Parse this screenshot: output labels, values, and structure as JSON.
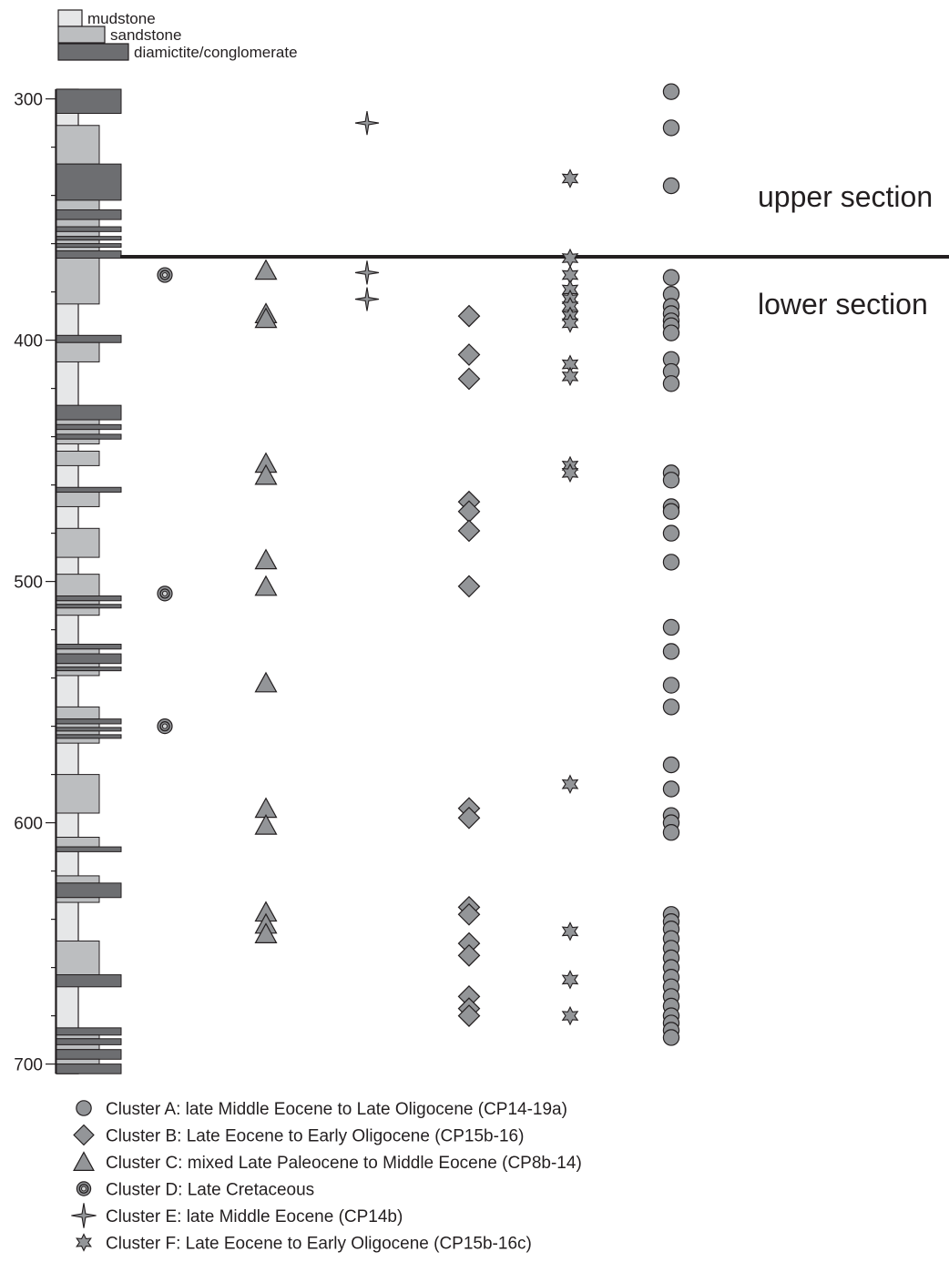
{
  "chart_data": {
    "type": "scatter",
    "y_axis": {
      "ticks": [
        300,
        400,
        500,
        600,
        700
      ],
      "ylim": [
        300,
        700
      ],
      "direction": "depth increases downward"
    },
    "lithology_legend": [
      {
        "key": "mudstone",
        "label": "mudstone",
        "color": "#e6e7e8"
      },
      {
        "key": "sandstone",
        "label": "sandstone",
        "color": "#bcbec0"
      },
      {
        "key": "diamictite",
        "label": "diamictite/conglomerate",
        "color": "#6d6e71"
      }
    ],
    "lithology_beds": [
      {
        "from": 296,
        "to": 306,
        "type": "diamictite"
      },
      {
        "from": 311,
        "to": 327,
        "type": "sandstone"
      },
      {
        "from": 327,
        "to": 342,
        "type": "diamictite"
      },
      {
        "from": 342,
        "to": 346,
        "type": "sandstone"
      },
      {
        "from": 346,
        "to": 350,
        "type": "diamictite"
      },
      {
        "from": 350,
        "to": 353,
        "type": "sandstone"
      },
      {
        "from": 353,
        "to": 355,
        "type": "diamictite"
      },
      {
        "from": 355,
        "to": 357,
        "type": "sandstone"
      },
      {
        "from": 357,
        "to": 358.5,
        "type": "diamictite"
      },
      {
        "from": 358.5,
        "to": 360,
        "type": "sandstone"
      },
      {
        "from": 360,
        "to": 361.5,
        "type": "diamictite"
      },
      {
        "from": 361.5,
        "to": 363,
        "type": "sandstone"
      },
      {
        "from": 363,
        "to": 366,
        "type": "diamictite"
      },
      {
        "from": 366,
        "to": 385,
        "type": "sandstone"
      },
      {
        "from": 398,
        "to": 401,
        "type": "diamictite"
      },
      {
        "from": 401,
        "to": 409,
        "type": "sandstone"
      },
      {
        "from": 427,
        "to": 433,
        "type": "diamictite"
      },
      {
        "from": 433,
        "to": 435,
        "type": "sandstone"
      },
      {
        "from": 435,
        "to": 437,
        "type": "diamictite"
      },
      {
        "from": 437,
        "to": 439,
        "type": "sandstone"
      },
      {
        "from": 439,
        "to": 441,
        "type": "diamictite"
      },
      {
        "from": 441,
        "to": 443,
        "type": "sandstone"
      },
      {
        "from": 446,
        "to": 452,
        "type": "sandstone"
      },
      {
        "from": 461,
        "to": 463,
        "type": "diamictite"
      },
      {
        "from": 463,
        "to": 469,
        "type": "sandstone"
      },
      {
        "from": 478,
        "to": 490,
        "type": "sandstone"
      },
      {
        "from": 497,
        "to": 506,
        "type": "sandstone"
      },
      {
        "from": 506,
        "to": 508,
        "type": "diamictite"
      },
      {
        "from": 508,
        "to": 509.5,
        "type": "sandstone"
      },
      {
        "from": 509.5,
        "to": 511,
        "type": "diamictite"
      },
      {
        "from": 511,
        "to": 514,
        "type": "sandstone"
      },
      {
        "from": 526,
        "to": 528,
        "type": "diamictite"
      },
      {
        "from": 528,
        "to": 530,
        "type": "sandstone"
      },
      {
        "from": 530,
        "to": 534,
        "type": "diamictite"
      },
      {
        "from": 534,
        "to": 535.5,
        "type": "sandstone"
      },
      {
        "from": 535.5,
        "to": 537,
        "type": "diamictite"
      },
      {
        "from": 537,
        "to": 539,
        "type": "sandstone"
      },
      {
        "from": 552,
        "to": 557,
        "type": "sandstone"
      },
      {
        "from": 557,
        "to": 559,
        "type": "diamictite"
      },
      {
        "from": 559,
        "to": 560.5,
        "type": "sandstone"
      },
      {
        "from": 560.5,
        "to": 562,
        "type": "diamictite"
      },
      {
        "from": 562,
        "to": 563.5,
        "type": "sandstone"
      },
      {
        "from": 563.5,
        "to": 565,
        "type": "diamictite"
      },
      {
        "from": 565,
        "to": 567,
        "type": "sandstone"
      },
      {
        "from": 580,
        "to": 596,
        "type": "sandstone"
      },
      {
        "from": 606,
        "to": 610,
        "type": "sandstone"
      },
      {
        "from": 610,
        "to": 612,
        "type": "diamictite"
      },
      {
        "from": 622,
        "to": 625,
        "type": "sandstone"
      },
      {
        "from": 625,
        "to": 631,
        "type": "diamictite"
      },
      {
        "from": 631,
        "to": 633,
        "type": "sandstone"
      },
      {
        "from": 649,
        "to": 663,
        "type": "sandstone"
      },
      {
        "from": 663,
        "to": 668,
        "type": "diamictite"
      },
      {
        "from": 685,
        "to": 688,
        "type": "diamictite"
      },
      {
        "from": 688,
        "to": 689.5,
        "type": "sandstone"
      },
      {
        "from": 689.5,
        "to": 692,
        "type": "diamictite"
      },
      {
        "from": 692,
        "to": 694,
        "type": "sandstone"
      },
      {
        "from": 694,
        "to": 698,
        "type": "diamictite"
      },
      {
        "from": 698,
        "to": 700,
        "type": "sandstone"
      },
      {
        "from": 700,
        "to": 704,
        "type": "diamictite"
      }
    ],
    "boundary": {
      "depth": 366,
      "label_above": "upper section",
      "label_below": "lower section"
    },
    "series": [
      {
        "name": "Cluster A: late Middle Eocene to Late Oligocene (CP14-19a)",
        "marker": "circle",
        "values": [
          297,
          312,
          336,
          374,
          381,
          386,
          389,
          392,
          394,
          397,
          408,
          413,
          418,
          455,
          458,
          469,
          471,
          480,
          492,
          519,
          529,
          543,
          552,
          576,
          586,
          597,
          600,
          604,
          638,
          641,
          644,
          648,
          652,
          656,
          660,
          664,
          668,
          672,
          676,
          680,
          683,
          686,
          689
        ]
      },
      {
        "name": "Cluster B: Late Eocene to Early Oligocene (CP15b-16)",
        "marker": "diamond",
        "values": [
          390,
          406,
          416,
          467,
          471,
          479,
          502,
          594,
          598,
          635,
          638,
          650,
          655,
          672,
          677,
          680
        ]
      },
      {
        "name": "Cluster C: mixed Late Paleocene to Middle Eocene (CP8b-14)",
        "marker": "triangle",
        "values": [
          371,
          389,
          391,
          451,
          456,
          491,
          502,
          542,
          594,
          601,
          637,
          642,
          646
        ]
      },
      {
        "name": "Cluster D: Late Cretaceous",
        "marker": "target",
        "values": [
          373,
          505,
          560
        ]
      },
      {
        "name": "Cluster E: late Middle Eocene (CP14b)",
        "marker": "sparkle",
        "values": [
          310,
          372,
          383
        ]
      },
      {
        "name": "Cluster F: Late Eocene to Early Oligocene (CP15b-16c)",
        "marker": "star",
        "values": [
          333,
          366,
          373,
          379,
          383,
          386,
          390,
          393,
          410,
          415,
          452,
          455,
          584,
          645,
          665,
          680
        ]
      }
    ],
    "marker_style": {
      "fill": "#939598",
      "stroke": "#231f20"
    }
  }
}
